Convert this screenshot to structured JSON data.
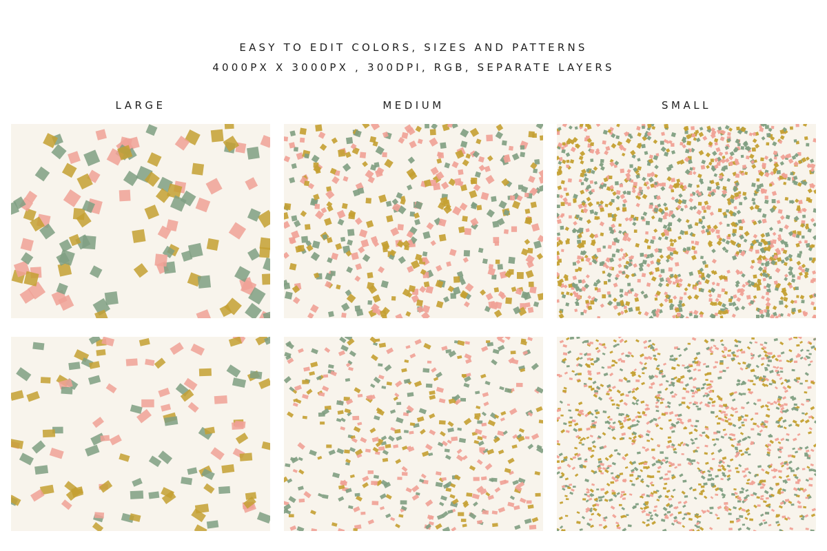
{
  "header": {
    "line1": "EASY TO EDIT COLORS, SIZES AND PATTERNS",
    "line2": "4000PX X 3000PX , 300DPI, RGB, SEPARATE LAYERS"
  },
  "columns": [
    {
      "label": "LARGE"
    },
    {
      "label": "MEDIUM"
    },
    {
      "label": "SMALL"
    }
  ],
  "palette": {
    "background": "#f8f4ec",
    "green": "#7f9f82",
    "pink": "#f0a196",
    "gold": "#c4a032"
  },
  "patterns": [
    {
      "size": "large",
      "shape": "square"
    },
    {
      "size": "medium",
      "shape": "square"
    },
    {
      "size": "small",
      "shape": "square"
    },
    {
      "size": "large",
      "shape": "rectangle"
    },
    {
      "size": "medium",
      "shape": "rectangle"
    },
    {
      "size": "small",
      "shape": "rectangle"
    }
  ]
}
